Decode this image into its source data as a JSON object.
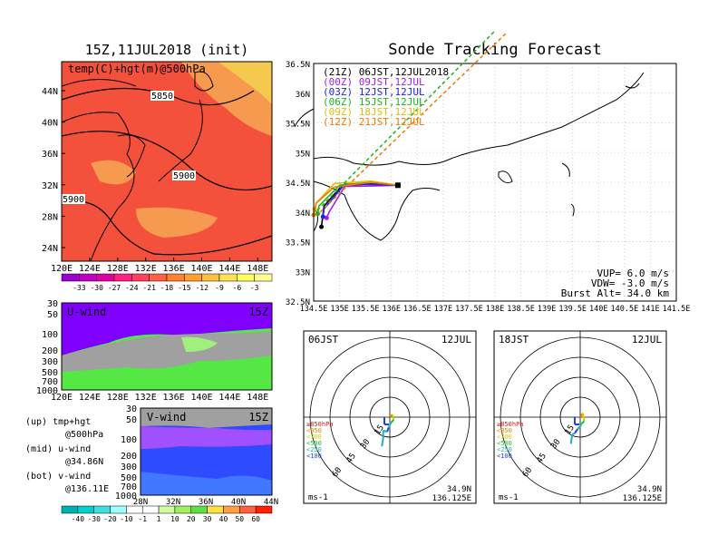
{
  "colors": {
    "temp_bg": "#f4513c",
    "temp_warm": "#f59a4e",
    "temp_warmer": "#f5c84e",
    "purple": "#8000ff",
    "green": "#55e844",
    "lightgreen": "#a0f080",
    "gray": "#a0a0a0",
    "lightpurple": "#9966ff",
    "blue": "#3366ff"
  },
  "panels": {
    "temp_map": {
      "title": "15Z,11JUL2018 (init)",
      "subtitle": "temp(C)+hgt(m)@500hPa",
      "contour_labels": [
        "5850",
        "5900",
        "5900"
      ],
      "lat_labels": [
        "44N",
        "40N",
        "36N",
        "32N",
        "28N",
        "24N"
      ],
      "lon_labels": [
        "120E",
        "124E",
        "128E",
        "132E",
        "136E",
        "140E",
        "144E",
        "148E"
      ],
      "colorbar_labels": [
        "-33",
        "-30",
        "-27",
        "-24",
        "-21",
        "-18",
        "-15",
        "-12",
        "-9",
        "-6",
        "-3"
      ]
    },
    "u_wind": {
      "label": "U-wind",
      "time": "15Z",
      "levels": [
        "30",
        "50",
        "100",
        "200",
        "300",
        "500",
        "700",
        "1000"
      ],
      "lon_labels": [
        "120E",
        "124E",
        "128E",
        "132E",
        "136E",
        "140E",
        "144E",
        "148E"
      ]
    },
    "v_wind": {
      "label": "V-wind",
      "time": "15Z",
      "levels": [
        "30",
        "50",
        "100",
        "200",
        "300",
        "500",
        "700",
        "1000"
      ],
      "lat_labels": [
        "28N",
        "32N",
        "36N",
        "40N",
        "44N"
      ]
    },
    "notes": [
      {
        "line1": "(up) tmp+hgt",
        "line2": "@500hPa"
      },
      {
        "line1": "(mid) u-wind",
        "line2": "@34.86N"
      },
      {
        "line1": "(bot) v-wind",
        "line2": "@136.11E"
      }
    ],
    "wind_colorbar_labels": [
      "-40",
      "-30",
      "-20",
      "-10",
      "-1",
      "1",
      "10",
      "20",
      "30",
      "40",
      "50",
      "60"
    ],
    "tracking": {
      "title": "Sonde Tracking Forecast",
      "legend": [
        {
          "label": "(21Z)  06JST,12JUL2018",
          "color": "#000000"
        },
        {
          "label": "(00Z)  09JST,12JUL",
          "color": "#a020f0"
        },
        {
          "label": "(03Z)  12JST,12JUL",
          "color": "#2020f0"
        },
        {
          "label": "(06Z)  15JST,12JUL",
          "color": "#20b020"
        },
        {
          "label": "(09Z)  18JST,12JUL",
          "color": "#e0c000"
        },
        {
          "label": "(12Z)  21JST,12JUL",
          "color": "#f07800"
        }
      ],
      "lat_labels": [
        "36.5N",
        "36N",
        "35.5N",
        "35N",
        "34.5N",
        "34N",
        "33.5N",
        "33N",
        "32.5N"
      ],
      "lon_labels": [
        "134.5E",
        "135E",
        "135.5E",
        "136E",
        "136.5E",
        "137E",
        "137.5E",
        "138E",
        "138.5E",
        "139E",
        "139.5E",
        "140E",
        "140.5E",
        "141E",
        "141.5E"
      ],
      "info": [
        "VUP=  6.0 m/s",
        "VDW= -3.0 m/s",
        "Burst Alt= 34.0 km"
      ]
    },
    "hodo1": {
      "time": "06JST",
      "date": "12JUL",
      "ring_labels": [
        "15",
        "30",
        "45",
        "60"
      ],
      "levels": [
        {
          "label": "≥850hPa",
          "color": "#e02020"
        },
        {
          "label": "<850",
          "color": "#f08000"
        },
        {
          "label": "<700",
          "color": "#d0d000"
        },
        {
          "label": "<500",
          "color": "#20c020"
        },
        {
          "label": "<250",
          "color": "#20b0c0"
        },
        {
          "label": "<100",
          "color": "#2040f0"
        }
      ],
      "units": "ms-1",
      "lat": "34.9N",
      "lon": "136.125E"
    },
    "hodo2": {
      "time": "18JST",
      "date": "12JUL",
      "ring_labels": [
        "15",
        "30",
        "45",
        "60"
      ],
      "levels": [
        {
          "label": "≥850hPa",
          "color": "#e02020"
        },
        {
          "label": "<850",
          "color": "#f08000"
        },
        {
          "label": "<700",
          "color": "#d0d000"
        },
        {
          "label": "<500",
          "color": "#20c020"
        },
        {
          "label": "<250",
          "color": "#20b0c0"
        },
        {
          "label": "<100",
          "color": "#2040f0"
        }
      ],
      "units": "ms-1",
      "lat": "34.9N",
      "lon": "136.125E"
    }
  },
  "chart_data": [
    {
      "type": "heatmap",
      "title": "15Z,11JUL2018 (init)",
      "subtitle": "temp(C)+hgt(m)@500hPa",
      "xlim": [
        120,
        150
      ],
      "ylim": [
        22,
        47
      ],
      "colorbar": [
        -33,
        -30,
        -27,
        -24,
        -21,
        -18,
        -15,
        -12,
        -9,
        -6,
        -3
      ],
      "contours": [
        5850,
        5900,
        5900
      ]
    },
    {
      "type": "heatmap",
      "title": "U-wind",
      "xlim": [
        120,
        150
      ],
      "levels_hPa": [
        30,
        50,
        100,
        200,
        300,
        500,
        700,
        1000
      ]
    },
    {
      "type": "heatmap",
      "title": "V-wind",
      "xlim": [
        28,
        44
      ],
      "levels_hPa": [
        30,
        50,
        100,
        200,
        300,
        500,
        700,
        1000
      ],
      "colorbar": [
        -40,
        -30,
        -20,
        -10,
        -1,
        1,
        10,
        20,
        30,
        40,
        50,
        60
      ]
    },
    {
      "type": "line",
      "title": "Sonde Tracking Forecast",
      "xlim": [
        134.5,
        141.5
      ],
      "ylim": [
        32.5,
        36.5
      ],
      "launch": {
        "x": 136.125,
        "y": 34.45
      },
      "series": [
        {
          "name": "(21Z)  06JST,12JUL2018",
          "x": [
            136.125,
            135.6,
            135.05,
            134.7,
            134.65
          ],
          "y": [
            34.45,
            34.47,
            34.45,
            34.1,
            33.75
          ]
        },
        {
          "name": "(00Z)  09JST,12JUL",
          "x": [
            136.125,
            135.7,
            135.1,
            134.8,
            134.75
          ],
          "y": [
            34.45,
            34.44,
            34.43,
            34.0,
            33.9
          ]
        },
        {
          "name": "(03Z)  12JST,12JUL",
          "x": [
            136.125,
            135.7,
            135.1,
            134.7,
            134.68
          ],
          "y": [
            34.45,
            34.46,
            34.47,
            34.05,
            33.92
          ]
        },
        {
          "name": "(06Z)  15JST,12JUL",
          "x": [
            136.125,
            135.6,
            135.0,
            134.6,
            134.58
          ],
          "y": [
            34.45,
            34.5,
            34.45,
            34.1,
            33.97
          ]
        },
        {
          "name": "(09Z)  18JST,12JUL",
          "x": [
            136.125,
            135.6,
            134.9,
            134.55,
            134.52
          ],
          "y": [
            34.45,
            34.52,
            34.48,
            34.15,
            34.05
          ]
        },
        {
          "name": "(12Z)  21JST,12JUL",
          "x": [
            136.125,
            135.6,
            134.9,
            134.55,
            134.5
          ],
          "y": [
            34.45,
            34.5,
            34.42,
            34.15,
            33.95
          ]
        }
      ],
      "info": {
        "VUP_ms": 6.0,
        "VDW_ms": -3.0,
        "burst_alt_km": 34.0
      }
    },
    {
      "type": "scatter",
      "title": "06JST 12JUL",
      "rings_ms": [
        15,
        30,
        45,
        60
      ],
      "u": [
        0,
        2,
        3,
        1,
        0,
        -1,
        -2,
        -5,
        -5,
        -6
      ],
      "v": [
        0,
        2,
        -2,
        -4,
        -6,
        -8,
        -11,
        -10,
        -16,
        -22
      ]
    },
    {
      "type": "scatter",
      "title": "18JST 12JUL",
      "rings_ms": [
        15,
        30,
        45,
        60
      ],
      "u": [
        0,
        2,
        3,
        1,
        0,
        -2,
        -4,
        -6,
        -7
      ],
      "v": [
        0,
        3,
        -3,
        -5,
        -7,
        -9,
        -12,
        -13,
        -20
      ]
    }
  ]
}
